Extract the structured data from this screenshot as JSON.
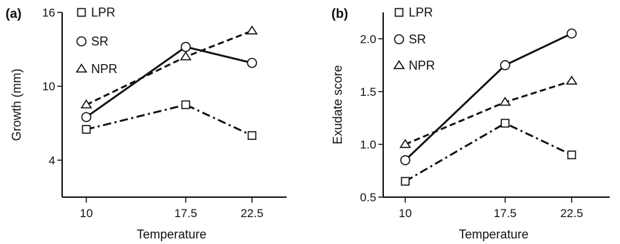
{
  "chart_data": [
    {
      "type": "line",
      "panel_label": "(a)",
      "x": [
        10,
        17.5,
        22.5
      ],
      "x_ticks": [
        "10",
        "17.5",
        "22.5"
      ],
      "xlabel": "Temperature",
      "ylabel": "Growth (mm)",
      "ylim": [
        1,
        16
      ],
      "y_ticks": [
        4,
        10,
        16
      ],
      "y_tick_labels": [
        "4",
        "10",
        "16"
      ],
      "legend_position": "top-left",
      "series": [
        {
          "name": "LPR",
          "marker": "square",
          "dash": "dash-dot",
          "values": [
            6.5,
            8.5,
            6.0
          ]
        },
        {
          "name": "SR",
          "marker": "circle",
          "dash": "solid",
          "values": [
            7.5,
            13.2,
            11.9
          ]
        },
        {
          "name": "NPR",
          "marker": "triangle",
          "dash": "dashed",
          "values": [
            8.5,
            12.4,
            14.5
          ]
        }
      ]
    },
    {
      "type": "line",
      "panel_label": "(b)",
      "x": [
        10,
        17.5,
        22.5
      ],
      "x_ticks": [
        "10",
        "17.5",
        "22.5"
      ],
      "xlabel": "Temperature",
      "ylabel": "Exudate score",
      "ylim": [
        0.5,
        2.25
      ],
      "y_ticks": [
        0.5,
        1.0,
        1.5,
        2.0
      ],
      "y_tick_labels": [
        "0.5",
        "1.0",
        "1.5",
        "2.0"
      ],
      "legend_position": "top-left",
      "series": [
        {
          "name": "LPR",
          "marker": "square",
          "dash": "dash-dot",
          "values": [
            0.65,
            1.2,
            0.9
          ]
        },
        {
          "name": "SR",
          "marker": "circle",
          "dash": "solid",
          "values": [
            0.85,
            1.75,
            2.05
          ]
        },
        {
          "name": "NPR",
          "marker": "triangle",
          "dash": "dashed",
          "values": [
            1.0,
            1.4,
            1.6
          ]
        }
      ]
    }
  ]
}
